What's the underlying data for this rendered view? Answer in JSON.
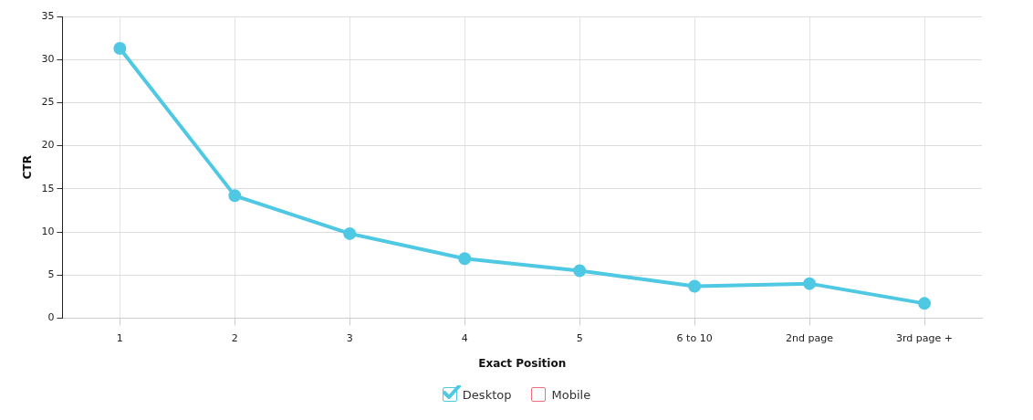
{
  "chart_data": {
    "type": "line",
    "xlabel": "Exact Position",
    "ylabel": "CTR",
    "categories": [
      "1",
      "2",
      "3",
      "4",
      "5",
      "6 to 10",
      "2nd page",
      "3rd page +"
    ],
    "series": [
      {
        "name": "Desktop",
        "color": "#4fc8e3",
        "values": [
          31.3,
          14.2,
          9.8,
          6.9,
          5.5,
          3.7,
          4.0,
          1.7
        ]
      },
      {
        "name": "Mobile",
        "color": "#f26d7d",
        "values": [
          null,
          null,
          null,
          null,
          null,
          null,
          null,
          null
        ]
      }
    ],
    "ylim": [
      0,
      35
    ],
    "yticks": [
      0,
      5,
      10,
      15,
      20,
      25,
      30,
      35
    ],
    "grid": true,
    "legend": "bottom",
    "marker": "circle",
    "line_style": "solid"
  }
}
